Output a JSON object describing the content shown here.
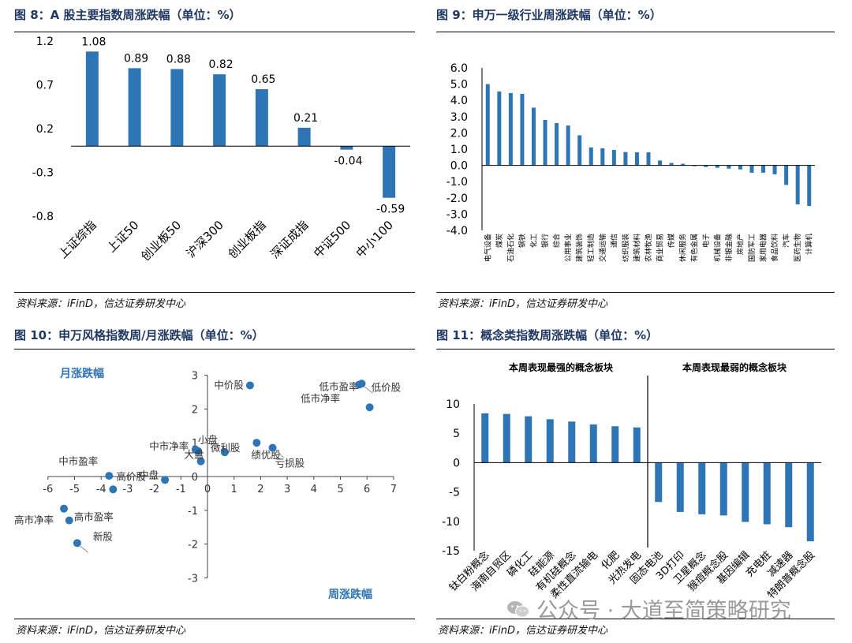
{
  "figures": {
    "fig8": {
      "title": "图 8：A 股主要指数周涨跌幅（单位：%）",
      "source": "资料来源：iFinD，信达证券研发中心"
    },
    "fig9": {
      "title": "图 9：申万一级行业周涨跌幅（单位：%）",
      "source": "资料来源：iFinD，信达证券研发中心"
    },
    "fig10": {
      "title": "图 10：申万风格指数周/月涨跌幅（单位：%）",
      "source": "资料来源：iFinD，信达证券研发中心"
    },
    "fig11": {
      "title": "图 11：概念类指数周涨跌幅（单位：%）",
      "source": "资料来源：iFinD，信达证券研发中心"
    }
  },
  "watermark": "公众号 · 大道至简策略研究",
  "colors": {
    "bar": "#2e75b6",
    "title": "#1f3864",
    "axis": "#000000",
    "label": "#2e75b6"
  },
  "chart_data": [
    {
      "id": "fig8",
      "type": "bar",
      "categories": [
        "上证综指",
        "上证50",
        "创业板50",
        "沪深300",
        "创业板指",
        "深证成指",
        "中证500",
        "中小100"
      ],
      "values": [
        1.08,
        0.89,
        0.88,
        0.82,
        0.65,
        0.21,
        -0.04,
        -0.59
      ],
      "data_labels": [
        "1.08",
        "0.89",
        "0.88",
        "0.82",
        "0.65",
        "0.21",
        "-0.04",
        "-0.59"
      ],
      "yticks": [
        "1.2",
        "0.7",
        "0.2",
        "-0.3",
        "-0.8"
      ],
      "ylim": [
        -0.8,
        1.2
      ]
    },
    {
      "id": "fig9",
      "type": "bar",
      "categories": [
        "电气设备",
        "煤炭",
        "石油石化",
        "钢铁",
        "化工",
        "银行",
        "综合",
        "公用事业",
        "建筑装饰",
        "轻工制造",
        "交通运输",
        "通信",
        "纺织服装",
        "建筑材料",
        "农林牧渔",
        "商业贸易",
        "传媒",
        "休闲服务",
        "有色金属",
        "电子",
        "机械设备",
        "非银金融",
        "房地产",
        "国防军工",
        "家用电器",
        "食品饮料",
        "汽车",
        "医药生物",
        "计算机"
      ],
      "values": [
        5.0,
        4.55,
        4.45,
        4.4,
        3.55,
        2.8,
        2.6,
        2.45,
        1.85,
        1.1,
        1.05,
        0.95,
        0.82,
        0.8,
        0.8,
        0.3,
        0.15,
        0.1,
        -0.05,
        -0.1,
        -0.15,
        -0.2,
        -0.25,
        -0.45,
        -0.45,
        -0.55,
        -1.2,
        -2.4,
        -2.5
      ],
      "yticks": [
        "6.0",
        "5.0",
        "4.0",
        "3.0",
        "2.0",
        "1.0",
        "0.0",
        "-1.0",
        "-2.0",
        "-3.0",
        "-4.0"
      ],
      "ylim": [
        -4.0,
        6.0
      ]
    },
    {
      "id": "fig10",
      "type": "scatter",
      "xlabel": "周涨跌幅",
      "ylabel": "月涨跌幅",
      "xticks": [
        "-6",
        "-5",
        "-4",
        "-3",
        "-2",
        "-1",
        "0",
        "1",
        "2",
        "3",
        "4",
        "5",
        "6",
        "7"
      ],
      "yticks": [
        "3",
        "2",
        "1",
        "0",
        "-1",
        "-2",
        "-3"
      ],
      "xlim": [
        -6,
        7
      ],
      "ylim": [
        -3,
        3
      ],
      "points": [
        {
          "label": "中价股",
          "x": 1.6,
          "y": 2.7
        },
        {
          "label": "低市盈率",
          "x": 5.8,
          "y": 2.75
        },
        {
          "label": "低价股",
          "x": 6.1,
          "y": 2.05
        },
        {
          "label": "低市净率",
          "x": 5.7,
          "y": 2.72
        },
        {
          "label": "小盘",
          "x": -0.45,
          "y": 0.8
        },
        {
          "label": "中市净率",
          "x": -0.35,
          "y": 0.75
        },
        {
          "label": "大盘",
          "x": -0.25,
          "y": 0.45
        },
        {
          "label": "微利股",
          "x": 0.65,
          "y": 0.72
        },
        {
          "label": "绩优股",
          "x": 1.85,
          "y": 1.0
        },
        {
          "label": "亏损股",
          "x": 2.45,
          "y": 0.85
        },
        {
          "label": "中市盈率",
          "x": -3.7,
          "y": 0.02
        },
        {
          "label": "高价股",
          "x": -3.55,
          "y": -0.38
        },
        {
          "label": "中盘",
          "x": -1.6,
          "y": -0.1
        },
        {
          "label": "高市净率",
          "x": -5.4,
          "y": -0.95
        },
        {
          "label": "高市盈率",
          "x": -5.2,
          "y": -1.3
        },
        {
          "label": "新股",
          "x": -4.9,
          "y": -1.97
        }
      ]
    },
    {
      "id": "fig11",
      "type": "bar",
      "group_labels": [
        "本周表现最强的概念板块",
        "本周表现最弱的概念板块"
      ],
      "categories": [
        "钛白粉概念",
        "海南自贸区",
        "磷化工",
        "硅能源",
        "有机硅概念",
        "柔性直流输电",
        "化肥",
        "光热发电",
        "固态电池",
        "3D打印",
        "卫星概念",
        "猴痘概念股",
        "基因编辑",
        "充电桩",
        "减速器",
        "特朗普概念股"
      ],
      "values": [
        8.4,
        8.3,
        7.9,
        7.4,
        7.0,
        6.5,
        6.2,
        6.0,
        -6.7,
        -8.4,
        -8.8,
        -9.0,
        -10.1,
        -10.5,
        -11.0,
        -13.4
      ],
      "yticks": [
        "10",
        "5",
        "0",
        "-5",
        "-10",
        "-15"
      ],
      "ylim": [
        -15,
        10
      ]
    }
  ]
}
